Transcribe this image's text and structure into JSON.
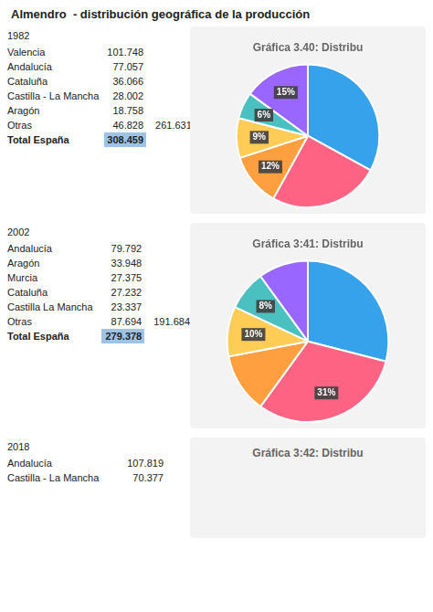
{
  "title": "Almendro  - distribución geográfica de la producción",
  "chart_data": [
    {
      "type": "pie",
      "title": "Gráfica 3.40: Distribu",
      "values": [
        33,
        25,
        12,
        9,
        6,
        15
      ],
      "value_labels": [
        null,
        null,
        "12%",
        "9%",
        "6%",
        "15%"
      ],
      "data_labels": true,
      "table": {
        "year": "1982",
        "rows": [
          [
            "Valencia",
            "101.748"
          ],
          [
            "Andalucía",
            "77.057"
          ],
          [
            "Cataluña",
            "36.066"
          ],
          [
            "Castilla - La Mancha",
            "28.002"
          ],
          [
            "Aragón",
            "18.758"
          ],
          [
            "Otras",
            "46.828",
            "261.631"
          ]
        ],
        "total": [
          "Total España",
          "308.459"
        ],
        "color": "#9dc3e6"
      }
    },
    {
      "type": "pie",
      "title": "Gráfica 3:41: Distribu",
      "values": [
        29,
        31,
        12,
        10,
        8,
        10
      ],
      "value_labels": [
        null,
        "31%",
        null,
        "10%",
        "8%",
        null
      ],
      "data_labels": true,
      "table": {
        "year": "2002",
        "rows": [
          [
            "Andalucía",
            "79.792"
          ],
          [
            "Aragón",
            "33.948"
          ],
          [
            "Murcia",
            "27.375"
          ],
          [
            "Cataluña",
            "27.232"
          ],
          [
            "Castilla La Mancha",
            "23.337"
          ],
          [
            "Otras",
            "87.694",
            "191.684"
          ]
        ],
        "total": [
          "Total España",
          "279.378"
        ],
        "color": "#9dc3e6"
      }
    },
    {
      "type": "text",
      "title": "Gráfica 3:42: Distribu",
      "table": {
        "year": "2018",
        "rows": [
          [
            "Andalucía",
            "107.819"
          ],
          [
            "Castilla - La Mancha",
            "70.377"
          ]
        ]
      }
    }
  ]
}
